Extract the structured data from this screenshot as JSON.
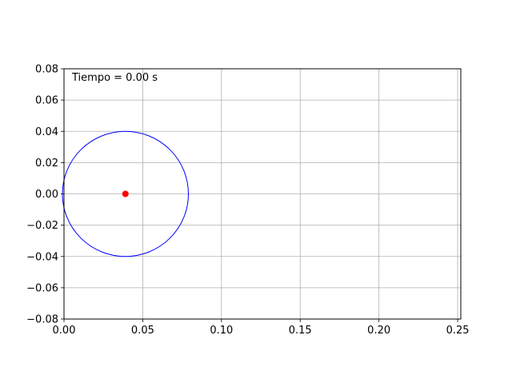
{
  "chart_data": {
    "type": "scatter",
    "title": "",
    "xlabel": "",
    "ylabel": "",
    "xlim": [
      0.0,
      0.252
    ],
    "ylim": [
      -0.08,
      0.08
    ],
    "x_ticks": [
      0.0,
      0.05,
      0.1,
      0.15,
      0.2,
      0.25
    ],
    "x_tick_labels": [
      "0.00",
      "0.05",
      "0.10",
      "0.15",
      "0.20",
      "0.25"
    ],
    "y_ticks": [
      -0.08,
      -0.06,
      -0.04,
      -0.02,
      0.0,
      0.02,
      0.04,
      0.06,
      0.08
    ],
    "y_tick_labels": [
      "−0.08",
      "−0.06",
      "−0.04",
      "−0.02",
      "0.00",
      "0.02",
      "0.04",
      "0.06",
      "0.08"
    ],
    "grid": true,
    "annotation": "Tiempo = 0.00 s",
    "circle": {
      "center_x": 0.039,
      "center_y": 0.0,
      "radius": 0.04,
      "color": "#0000ff"
    },
    "point": {
      "x": 0.039,
      "y": 0.0,
      "color": "#ff0000"
    }
  }
}
